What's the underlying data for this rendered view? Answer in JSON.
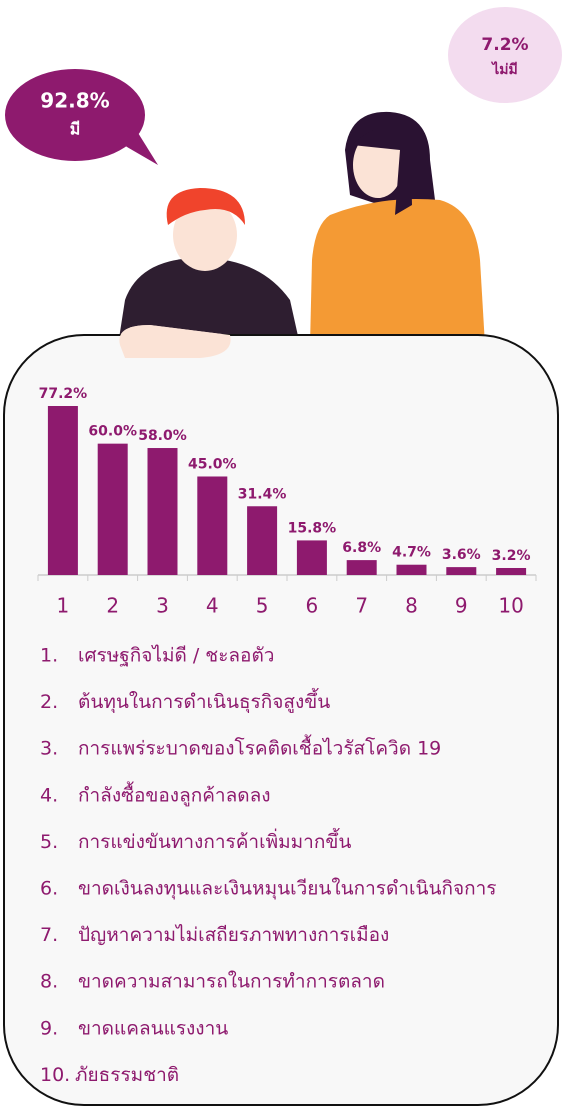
{
  "bubbles": [
    {
      "value_label": "92.8%",
      "label": "มี"
    },
    {
      "value_label": "7.2%",
      "label": "ไม่มี"
    }
  ],
  "chart_data": {
    "type": "bar",
    "color": "#8e1a6e",
    "categories": [
      "1",
      "2",
      "3",
      "4",
      "5",
      "6",
      "7",
      "8",
      "9",
      "10"
    ],
    "values": [
      77.2,
      60.0,
      58.0,
      45.0,
      31.4,
      15.8,
      6.8,
      4.7,
      3.6,
      3.2
    ],
    "value_labels": [
      "77.2%",
      "60.0%",
      "58.0%",
      "45.0%",
      "31.4%",
      "15.8%",
      "6.8%",
      "4.7%",
      "3.6%",
      "3.2%"
    ]
  },
  "reasons": [
    {
      "number": "1.",
      "text": "เศรษฐกิจไม่ดี / ชะลอตัว"
    },
    {
      "number": "2.",
      "text": "ต้นทุนในการดำเนินธุรกิจสูงขึ้น"
    },
    {
      "number": "3.",
      "text": "การแพร่ระบาดของโรคติดเชื้อไวรัสโควิด 19"
    },
    {
      "number": "4.",
      "text": "กำลังซื้อของลูกค้าลดลง"
    },
    {
      "number": "5.",
      "text": "การแข่งขันทางการค้าเพิ่มมากขึ้น"
    },
    {
      "number": "6.",
      "text": "ขาดเงินลงทุนและเงินหมุนเวียนในการดำเนินกิจการ"
    },
    {
      "number": "7.",
      "text": "ปัญหาความไม่เสถียรภาพทางการเมือง"
    },
    {
      "number": "8.",
      "text": "ขาดความสามารถในการทำการตลาด"
    },
    {
      "number": "9.",
      "text": "ขาดแคลนแรงงาน"
    },
    {
      "number": "10.",
      "text": "ภัยธรรมชาติ"
    }
  ]
}
